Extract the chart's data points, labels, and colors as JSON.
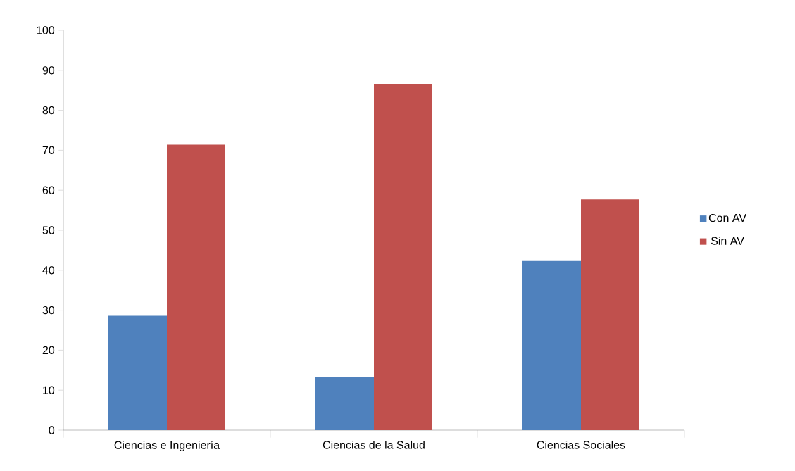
{
  "chart_data": {
    "type": "bar",
    "categories": [
      "Ciencias e Ingeniería",
      "Ciencias de la Salud",
      "Ciencias Sociales"
    ],
    "series": [
      {
        "name": "Con AV",
        "color": "#4f81bd",
        "values": [
          28.6,
          13.4,
          42.3
        ]
      },
      {
        "name": "Sin AV",
        "color": "#c0504d",
        "values": [
          71.4,
          86.6,
          57.7
        ]
      }
    ],
    "ylim": [
      0,
      100
    ],
    "yticks": [
      0,
      10,
      20,
      30,
      40,
      50,
      60,
      70,
      80,
      90,
      100
    ],
    "grid": false,
    "legend": "right"
  }
}
